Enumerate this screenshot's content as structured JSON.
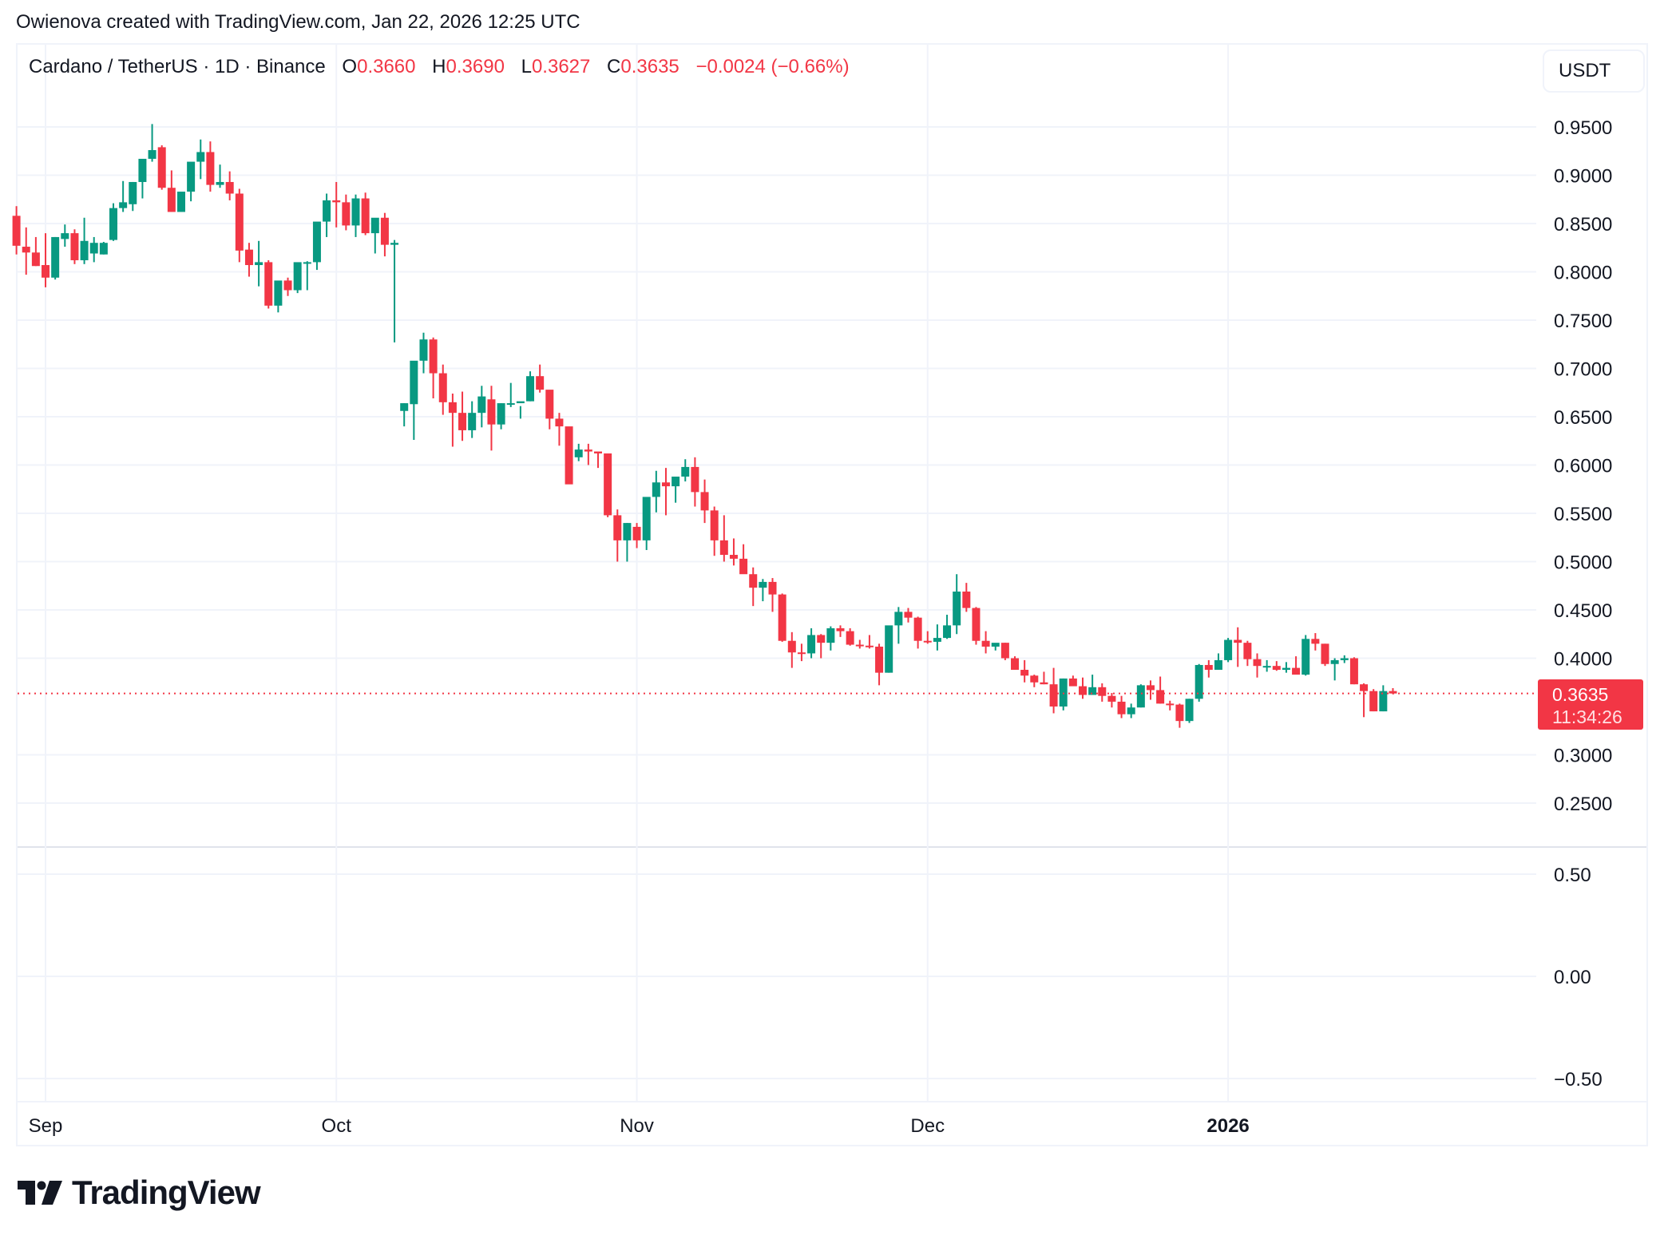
{
  "attribution": "Owienova created with TradingView.com, Jan 22, 2026 12:25 UTC",
  "legend": {
    "symbol": "Cardano / TetherUS · 1D · Binance",
    "open_label": "O",
    "open": "0.3660",
    "high_label": "H",
    "high": "0.3690",
    "low_label": "L",
    "low": "0.3627",
    "close_label": "C",
    "close": "0.3635",
    "change": "−0.0024 (−0.66%)"
  },
  "currency_button": "USDT",
  "price_badge": {
    "price": "0.3635",
    "countdown": "11:34:26"
  },
  "logo": {
    "text": "TradingView",
    "icon": "tradingview-logo-icon"
  },
  "colors": {
    "up": "#089981",
    "down": "#f23645",
    "grid": "#f0f3fa",
    "text": "#131722"
  },
  "chart_data": {
    "type": "candlestick",
    "title": "Cardano / TetherUS · 1D · Binance",
    "ylabel": "USDT",
    "ylim": [
      0.22,
      0.98
    ],
    "y_ticks": [
      "0.9500",
      "0.9000",
      "0.8500",
      "0.8000",
      "0.7500",
      "0.7000",
      "0.6500",
      "0.6000",
      "0.5500",
      "0.5000",
      "0.4500",
      "0.4000",
      "0.3000",
      "0.2500"
    ],
    "x_ticks": [
      {
        "label": "Sep",
        "day": 3,
        "bold": false
      },
      {
        "label": "Oct",
        "day": 33,
        "bold": false
      },
      {
        "label": "Nov",
        "day": 64,
        "bold": false
      },
      {
        "label": "Dec",
        "day": 94,
        "bold": false
      },
      {
        "label": "2026",
        "day": 125,
        "bold": true
      }
    ],
    "last_price": 0.3635,
    "indicator_pane": {
      "y_ticks": [
        "0.50",
        "0.00",
        "−0.50"
      ]
    },
    "candles": [
      [
        0.858,
        0.868,
        0.818,
        0.827
      ],
      [
        0.826,
        0.846,
        0.797,
        0.82
      ],
      [
        0.82,
        0.836,
        0.806,
        0.806
      ],
      [
        0.807,
        0.84,
        0.784,
        0.794
      ],
      [
        0.794,
        0.836,
        0.792,
        0.836
      ],
      [
        0.834,
        0.849,
        0.826,
        0.84
      ],
      [
        0.84,
        0.844,
        0.808,
        0.812
      ],
      [
        0.812,
        0.856,
        0.808,
        0.832
      ],
      [
        0.819,
        0.836,
        0.81,
        0.83
      ],
      [
        0.818,
        0.831,
        0.818,
        0.83
      ],
      [
        0.833,
        0.871,
        0.832,
        0.866
      ],
      [
        0.866,
        0.894,
        0.862,
        0.872
      ],
      [
        0.87,
        0.893,
        0.863,
        0.893
      ],
      [
        0.893,
        0.904,
        0.876,
        0.917
      ],
      [
        0.917,
        0.953,
        0.914,
        0.926
      ],
      [
        0.929,
        0.931,
        0.885,
        0.887
      ],
      [
        0.887,
        0.905,
        0.862,
        0.862
      ],
      [
        0.862,
        0.882,
        0.862,
        0.883
      ],
      [
        0.883,
        0.907,
        0.873,
        0.914
      ],
      [
        0.914,
        0.937,
        0.896,
        0.924
      ],
      [
        0.924,
        0.935,
        0.883,
        0.89
      ],
      [
        0.89,
        0.911,
        0.887,
        0.893
      ],
      [
        0.893,
        0.904,
        0.874,
        0.881
      ],
      [
        0.881,
        0.886,
        0.81,
        0.822
      ],
      [
        0.823,
        0.83,
        0.795,
        0.807
      ],
      [
        0.807,
        0.832,
        0.785,
        0.81
      ],
      [
        0.81,
        0.812,
        0.762,
        0.765
      ],
      [
        0.765,
        0.786,
        0.758,
        0.791
      ],
      [
        0.791,
        0.794,
        0.775,
        0.781
      ],
      [
        0.781,
        0.809,
        0.778,
        0.81
      ],
      [
        0.81,
        0.811,
        0.781,
        0.81
      ],
      [
        0.81,
        0.819,
        0.802,
        0.852
      ],
      [
        0.852,
        0.881,
        0.836,
        0.874
      ],
      [
        0.874,
        0.893,
        0.846,
        0.872
      ],
      [
        0.872,
        0.88,
        0.843,
        0.848
      ],
      [
        0.848,
        0.88,
        0.836,
        0.876
      ],
      [
        0.876,
        0.882,
        0.838,
        0.84
      ],
      [
        0.84,
        0.855,
        0.819,
        0.856
      ],
      [
        0.856,
        0.861,
        0.816,
        0.828
      ],
      [
        0.828,
        0.833,
        0.727,
        0.83
      ],
      [
        0.656,
        0.664,
        0.64,
        0.664
      ],
      [
        0.663,
        0.7,
        0.626,
        0.708
      ],
      [
        0.708,
        0.737,
        0.695,
        0.73
      ],
      [
        0.73,
        0.732,
        0.669,
        0.695
      ],
      [
        0.695,
        0.704,
        0.652,
        0.665
      ],
      [
        0.665,
        0.674,
        0.619,
        0.654
      ],
      [
        0.654,
        0.676,
        0.625,
        0.636
      ],
      [
        0.636,
        0.666,
        0.628,
        0.654
      ],
      [
        0.654,
        0.682,
        0.639,
        0.671
      ],
      [
        0.668,
        0.682,
        0.615,
        0.642
      ],
      [
        0.642,
        0.664,
        0.637,
        0.664
      ],
      [
        0.664,
        0.685,
        0.66,
        0.664
      ],
      [
        0.664,
        0.661,
        0.648,
        0.666
      ],
      [
        0.666,
        0.697,
        0.666,
        0.692
      ],
      [
        0.692,
        0.704,
        0.675,
        0.678
      ],
      [
        0.678,
        0.676,
        0.637,
        0.648
      ],
      [
        0.648,
        0.654,
        0.62,
        0.64
      ],
      [
        0.64,
        0.61,
        0.586,
        0.58
      ],
      [
        0.608,
        0.622,
        0.604,
        0.616
      ],
      [
        0.616,
        0.622,
        0.6,
        0.614
      ],
      [
        0.614,
        0.613,
        0.597,
        0.612
      ],
      [
        0.612,
        0.612,
        0.546,
        0.548
      ],
      [
        0.548,
        0.554,
        0.5,
        0.522
      ],
      [
        0.522,
        0.54,
        0.5,
        0.54
      ],
      [
        0.536,
        0.54,
        0.514,
        0.522
      ],
      [
        0.522,
        0.563,
        0.512,
        0.567
      ],
      [
        0.567,
        0.594,
        0.551,
        0.582
      ],
      [
        0.582,
        0.597,
        0.548,
        0.578
      ],
      [
        0.578,
        0.585,
        0.561,
        0.588
      ],
      [
        0.588,
        0.606,
        0.583,
        0.598
      ],
      [
        0.598,
        0.608,
        0.557,
        0.572
      ],
      [
        0.572,
        0.585,
        0.54,
        0.553
      ],
      [
        0.553,
        0.557,
        0.506,
        0.522
      ],
      [
        0.522,
        0.548,
        0.5,
        0.507
      ],
      [
        0.507,
        0.524,
        0.496,
        0.503
      ],
      [
        0.503,
        0.518,
        0.488,
        0.487
      ],
      [
        0.487,
        0.494,
        0.454,
        0.473
      ],
      [
        0.473,
        0.482,
        0.459,
        0.479
      ],
      [
        0.479,
        0.483,
        0.448,
        0.466
      ],
      [
        0.466,
        0.467,
        0.417,
        0.418
      ],
      [
        0.418,
        0.427,
        0.39,
        0.406
      ],
      [
        0.406,
        0.415,
        0.397,
        0.405
      ],
      [
        0.405,
        0.431,
        0.4,
        0.424
      ],
      [
        0.424,
        0.425,
        0.4,
        0.416
      ],
      [
        0.416,
        0.433,
        0.408,
        0.431
      ],
      [
        0.431,
        0.434,
        0.422,
        0.428
      ],
      [
        0.428,
        0.431,
        0.413,
        0.414
      ],
      [
        0.414,
        0.419,
        0.41,
        0.413
      ],
      [
        0.413,
        0.424,
        0.41,
        0.412
      ],
      [
        0.412,
        0.415,
        0.372,
        0.385
      ],
      [
        0.385,
        0.433,
        0.385,
        0.434
      ],
      [
        0.434,
        0.453,
        0.415,
        0.448
      ],
      [
        0.448,
        0.452,
        0.437,
        0.442
      ],
      [
        0.442,
        0.443,
        0.41,
        0.418
      ],
      [
        0.418,
        0.428,
        0.415,
        0.417
      ],
      [
        0.417,
        0.435,
        0.408,
        0.421
      ],
      [
        0.421,
        0.445,
        0.42,
        0.434
      ],
      [
        0.434,
        0.487,
        0.425,
        0.469
      ],
      [
        0.469,
        0.478,
        0.448,
        0.452
      ],
      [
        0.452,
        0.453,
        0.414,
        0.418
      ],
      [
        0.418,
        0.428,
        0.405,
        0.412
      ],
      [
        0.412,
        0.415,
        0.408,
        0.416
      ],
      [
        0.416,
        0.416,
        0.398,
        0.4
      ],
      [
        0.4,
        0.402,
        0.388,
        0.388
      ],
      [
        0.388,
        0.398,
        0.375,
        0.382
      ],
      [
        0.382,
        0.383,
        0.37,
        0.375
      ],
      [
        0.375,
        0.386,
        0.373,
        0.373
      ],
      [
        0.373,
        0.39,
        0.343,
        0.35
      ],
      [
        0.35,
        0.379,
        0.346,
        0.379
      ],
      [
        0.379,
        0.382,
        0.374,
        0.371
      ],
      [
        0.371,
        0.38,
        0.358,
        0.362
      ],
      [
        0.362,
        0.383,
        0.367,
        0.37
      ],
      [
        0.37,
        0.374,
        0.355,
        0.361
      ],
      [
        0.361,
        0.364,
        0.349,
        0.355
      ],
      [
        0.355,
        0.361,
        0.338,
        0.342
      ],
      [
        0.342,
        0.353,
        0.338,
        0.349
      ],
      [
        0.349,
        0.373,
        0.349,
        0.372
      ],
      [
        0.372,
        0.377,
        0.357,
        0.367
      ],
      [
        0.367,
        0.381,
        0.353,
        0.353
      ],
      [
        0.353,
        0.356,
        0.346,
        0.352
      ],
      [
        0.352,
        0.353,
        0.328,
        0.335
      ],
      [
        0.335,
        0.358,
        0.333,
        0.358
      ],
      [
        0.358,
        0.394,
        0.355,
        0.393
      ],
      [
        0.393,
        0.398,
        0.38,
        0.388
      ],
      [
        0.388,
        0.405,
        0.388,
        0.398
      ],
      [
        0.398,
        0.421,
        0.396,
        0.419
      ],
      [
        0.419,
        0.432,
        0.391,
        0.416
      ],
      [
        0.416,
        0.418,
        0.392,
        0.399
      ],
      [
        0.399,
        0.405,
        0.38,
        0.392
      ],
      [
        0.392,
        0.398,
        0.386,
        0.392
      ],
      [
        0.392,
        0.397,
        0.387,
        0.388
      ],
      [
        0.388,
        0.396,
        0.385,
        0.39
      ],
      [
        0.39,
        0.402,
        0.384,
        0.383
      ],
      [
        0.383,
        0.424,
        0.382,
        0.42
      ],
      [
        0.42,
        0.426,
        0.408,
        0.415
      ],
      [
        0.415,
        0.415,
        0.392,
        0.394
      ],
      [
        0.394,
        0.4,
        0.377,
        0.398
      ],
      [
        0.398,
        0.403,
        0.395,
        0.4
      ],
      [
        0.4,
        0.401,
        0.373,
        0.373
      ],
      [
        0.373,
        0.374,
        0.339,
        0.366
      ],
      [
        0.366,
        0.368,
        0.345,
        0.345
      ],
      [
        0.345,
        0.372,
        0.345,
        0.366
      ],
      [
        0.366,
        0.369,
        0.3627,
        0.3635
      ]
    ]
  }
}
